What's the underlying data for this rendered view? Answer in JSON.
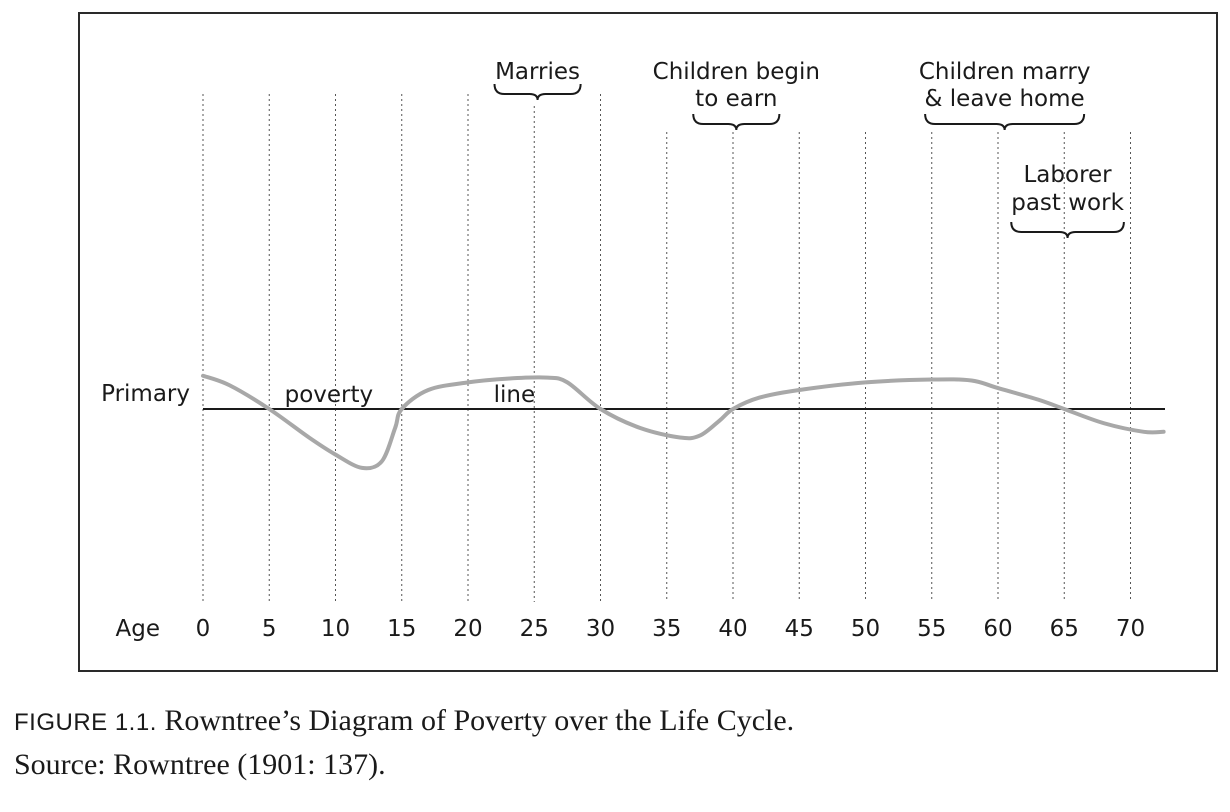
{
  "chart_data": {
    "type": "line",
    "x_label": "Age",
    "y_label": "Primary",
    "threshold_label_words": [
      "poverty",
      "line"
    ],
    "x_ticks": [
      0,
      5,
      10,
      15,
      20,
      25,
      30,
      35,
      40,
      45,
      50,
      55,
      60,
      65,
      70
    ],
    "x_range": [
      0,
      72.5
    ],
    "y_range": [
      -1.2,
      1.0
    ],
    "threshold_y": 0,
    "series": [
      {
        "points": [
          [
            0,
            0.35
          ],
          [
            2,
            0.25
          ],
          [
            5,
            0.0
          ],
          [
            8,
            -0.3
          ],
          [
            10,
            -0.48
          ],
          [
            12,
            -0.62
          ],
          [
            13.5,
            -0.55
          ],
          [
            14.5,
            -0.2
          ],
          [
            15,
            0.0
          ],
          [
            17,
            0.2
          ],
          [
            20,
            0.28
          ],
          [
            23,
            0.32
          ],
          [
            26,
            0.33
          ],
          [
            27.5,
            0.28
          ],
          [
            30,
            0.0
          ],
          [
            33,
            -0.2
          ],
          [
            36,
            -0.3
          ],
          [
            37.5,
            -0.28
          ],
          [
            39,
            -0.12
          ],
          [
            40,
            0.0
          ],
          [
            42,
            0.12
          ],
          [
            45,
            0.2
          ],
          [
            50,
            0.28
          ],
          [
            55,
            0.31
          ],
          [
            58,
            0.3
          ],
          [
            60,
            0.22
          ],
          [
            63,
            0.1
          ],
          [
            65,
            0.0
          ],
          [
            68,
            -0.15
          ],
          [
            71,
            -0.24
          ],
          [
            72.5,
            -0.24
          ]
        ],
        "color": "#a8a8a8"
      }
    ],
    "annotations": [
      {
        "lines": [
          "Marries"
        ],
        "x_start": 22,
        "x_end": 28.5,
        "tier": "top"
      },
      {
        "lines": [
          "Children begin",
          "to earn"
        ],
        "x_start": 37,
        "x_end": 43.5,
        "tier": "second"
      },
      {
        "lines": [
          "Children marry",
          "& leave home"
        ],
        "x_start": 54.5,
        "x_end": 66.5,
        "tier": "second"
      },
      {
        "lines": [
          "Laborer",
          "past work"
        ],
        "x_start": 61,
        "x_end": 69.5,
        "tier": "third"
      }
    ],
    "grid": "vertical-dotted"
  },
  "caption": {
    "figure_label": "FIGURE 1.1.",
    "title": "Rowntree’s Diagram of Poverty over the Life Cycle.",
    "source": "Source: Rowntree (1901: 137)."
  }
}
